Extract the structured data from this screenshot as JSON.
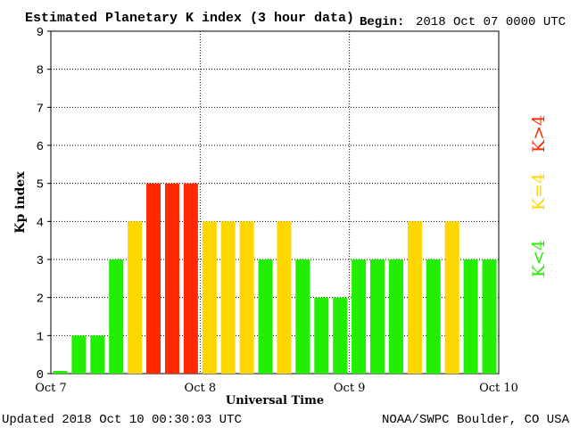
{
  "header": {
    "title": "Estimated Planetary K index (3 hour data)",
    "begin_label": "Begin:",
    "begin_value": "2018 Oct 07 0000 UTC"
  },
  "footer": {
    "updated": "Updated 2018 Oct 10 00:30:03 UTC",
    "source": "NOAA/SWPC Boulder, CO USA"
  },
  "legend": {
    "high": "K>4",
    "mid": "K=4",
    "low": "K<4"
  },
  "colors": {
    "high": "#ff2a00",
    "mid": "#ffd700",
    "low": "#22ee00",
    "grid": "#000000"
  },
  "chart_data": {
    "type": "bar",
    "title": "Estimated Planetary K index (3 hour data)",
    "xlabel": "Universal Time",
    "ylabel": "Kp index",
    "ylim": [
      0,
      9
    ],
    "yticks": [
      "0",
      "1",
      "2",
      "3",
      "4",
      "5",
      "6",
      "7",
      "8",
      "9"
    ],
    "xtick_labels": [
      "Oct 7",
      "Oct 8",
      "Oct 9",
      "Oct 10"
    ],
    "grid": true,
    "values": [
      0,
      1,
      1,
      3,
      4,
      5,
      5,
      5,
      4,
      4,
      4,
      3,
      4,
      3,
      2,
      2,
      3,
      3,
      3,
      4,
      3,
      4,
      3,
      3
    ]
  }
}
